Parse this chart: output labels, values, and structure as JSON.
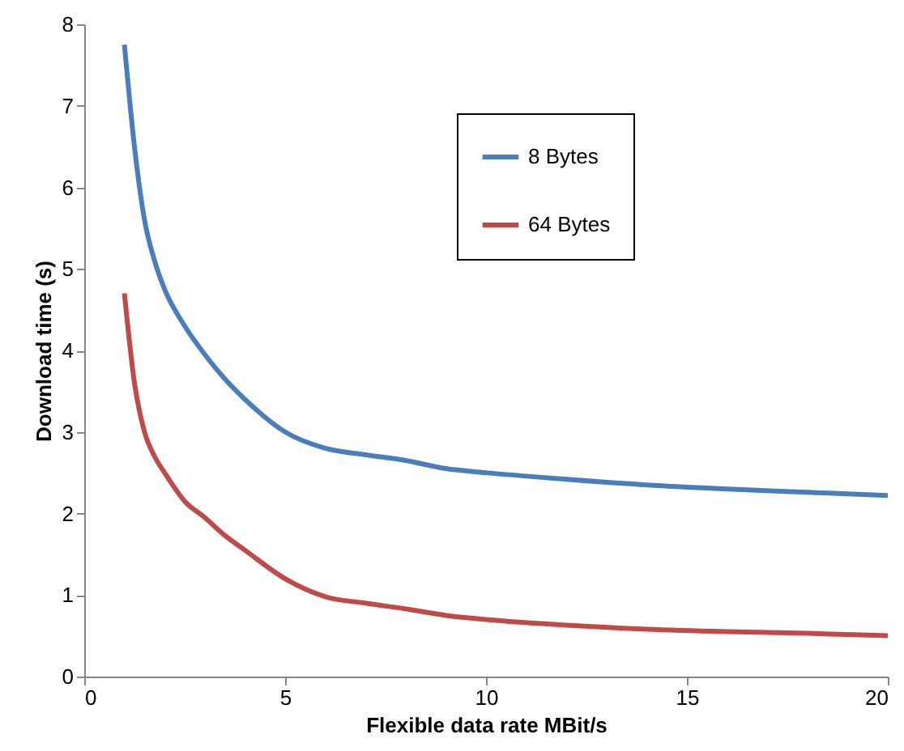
{
  "chart_data": {
    "type": "line",
    "xlabel": "Flexible data rate MBit/s",
    "ylabel": "Download time (s)",
    "x": [
      1,
      1.25,
      1.5,
      1.75,
      2,
      2.5,
      3,
      3.5,
      4,
      5,
      6,
      7,
      8,
      9,
      10,
      12,
      14,
      16,
      18,
      20
    ],
    "series": [
      {
        "name": "8 Bytes",
        "color": "#4a7ebb",
        "values": [
          7.75,
          6.5,
          5.6,
          5.1,
          4.75,
          4.3,
          3.95,
          3.65,
          3.4,
          3.0,
          2.8,
          2.72,
          2.65,
          2.55,
          2.5,
          2.42,
          2.35,
          2.3,
          2.26,
          2.22
        ]
      },
      {
        "name": "64 Bytes",
        "color": "#be4b48",
        "values": [
          4.7,
          3.6,
          3.0,
          2.7,
          2.5,
          2.15,
          1.95,
          1.73,
          1.55,
          1.2,
          0.98,
          0.9,
          0.83,
          0.75,
          0.7,
          0.63,
          0.58,
          0.55,
          0.53,
          0.5
        ]
      }
    ],
    "xlim": [
      0,
      20
    ],
    "xticks": [
      0,
      5,
      10,
      15,
      20
    ],
    "ylim": [
      0,
      8
    ],
    "yticks": [
      0,
      1,
      2,
      3,
      4,
      5,
      6,
      7,
      8
    ],
    "grid": false,
    "legend": "top right",
    "marker": "none",
    "line_style": "solid"
  }
}
